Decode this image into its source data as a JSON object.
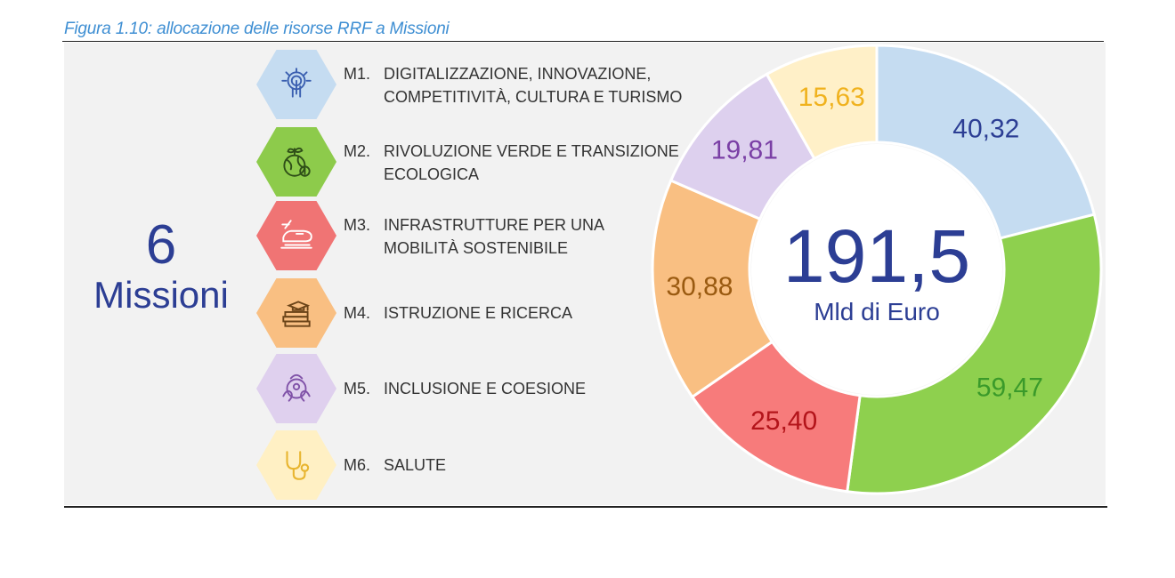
{
  "caption": "Figura 1.10: allocazione delle risorse RRF a Missioni",
  "left_block": {
    "count": "6",
    "label": "Missioni"
  },
  "center": {
    "total": "191,5",
    "unit": "Mld di Euro"
  },
  "missions": [
    {
      "code": "M1.",
      "line1": "DIGITALIZZAZIONE, INNOVAZIONE,",
      "line2": "COMPETITIVITÀ, CULTURA E TURISMO",
      "icon": "digital-hand-icon",
      "hex_color": "#c5dcf1",
      "icon_color": "#3a5fb0"
    },
    {
      "code": "M2.",
      "line1": "RIVOLUZIONE VERDE E TRANSIZIONE",
      "line2": "ECOLOGICA",
      "icon": "green-globe-icon",
      "hex_color": "#8dcb4b",
      "icon_color": "#2f4f18"
    },
    {
      "code": "M3.",
      "line1": "INFRASTRUTTURE PER UNA",
      "line2": "MOBILITÀ SOSTENIBILE",
      "icon": "train-icon",
      "hex_color": "#f07474",
      "icon_color": "#ffffff"
    },
    {
      "code": "M4.",
      "line1": "ISTRUZIONE E RICERCA",
      "line2": "",
      "icon": "books-graduation-cap-icon",
      "hex_color": "#f9bf82",
      "icon_color": "#6b4418"
    },
    {
      "code": "M5.",
      "line1": "INCLUSIONE E COESIONE",
      "line2": "",
      "icon": "hands-circle-icon",
      "hex_color": "#dfd0ee",
      "icon_color": "#8052a8"
    },
    {
      "code": "M6.",
      "line1": "SALUTE",
      "line2": "",
      "icon": "stethoscope-icon",
      "hex_color": "#fff0c4",
      "icon_color": "#e8b530"
    }
  ],
  "chart_data": {
    "type": "pie",
    "donut": true,
    "title": "",
    "total": 191.5,
    "unit": "Mld di Euro",
    "slices": [
      {
        "label": "M1",
        "value": 40.32,
        "text": "40,32",
        "color": "#c5dcf1",
        "label_color": "#2c3e94"
      },
      {
        "label": "M2",
        "value": 59.47,
        "text": "59,47",
        "color": "#8ed04e",
        "label_color": "#3a9a2a"
      },
      {
        "label": "M3",
        "value": 25.4,
        "text": "25,40",
        "color": "#f77b7b",
        "label_color": "#b3141a"
      },
      {
        "label": "M4",
        "value": 30.88,
        "text": "30,88",
        "color": "#f9bf82",
        "label_color": "#9a5a10"
      },
      {
        "label": "M5",
        "value": 19.81,
        "text": "19,81",
        "color": "#ddd0ee",
        "label_color": "#7a3fa5"
      },
      {
        "label": "M6",
        "value": 15.63,
        "text": "15,63",
        "color": "#fff0c8",
        "label_color": "#f0b21e"
      }
    ]
  }
}
